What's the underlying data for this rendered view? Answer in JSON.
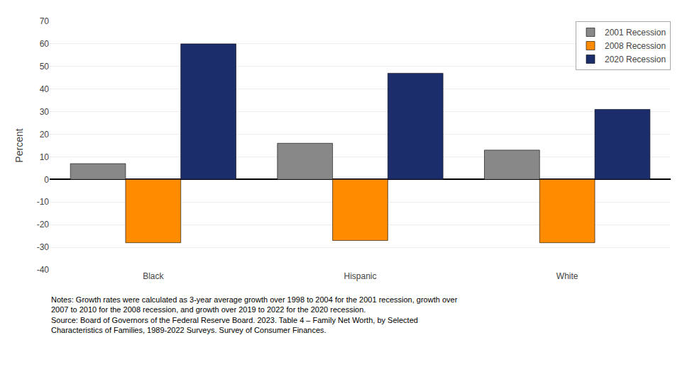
{
  "chart_data": {
    "type": "bar",
    "categories": [
      "Black",
      "Hispanic",
      "White"
    ],
    "series": [
      {
        "name": "2001 Recession",
        "color": "#888888",
        "values": [
          7,
          16,
          13
        ]
      },
      {
        "name": "2008 Recession",
        "color": "#FF8C00",
        "values": [
          -28,
          -27,
          -28
        ]
      },
      {
        "name": "2020 Recession",
        "color": "#1B2D6B",
        "values": [
          60,
          47,
          31
        ]
      }
    ],
    "ylabel": "Percent",
    "ylim": [
      -40,
      70
    ],
    "yticks": [
      -40,
      -30,
      -20,
      -10,
      0,
      10,
      20,
      30,
      40,
      50,
      60,
      70
    ],
    "grid": true,
    "legend": "upper right",
    "annotations": [
      "Notes: Growth rates were calculated as 3-year average growth over 1998 to 2004 for the 2001 recession, growth over",
      "2007 to 2010 for the 2008 recession, and growth over 2019 to 2022 for the 2020 recession.",
      "Source: Board of Governors of the Federal Reserve Board. 2023. Table 4 – Family Net Worth, by Selected",
      "Characteristics of Families, 1989-2022 Surveys. Survey of Consumer Finances."
    ]
  }
}
